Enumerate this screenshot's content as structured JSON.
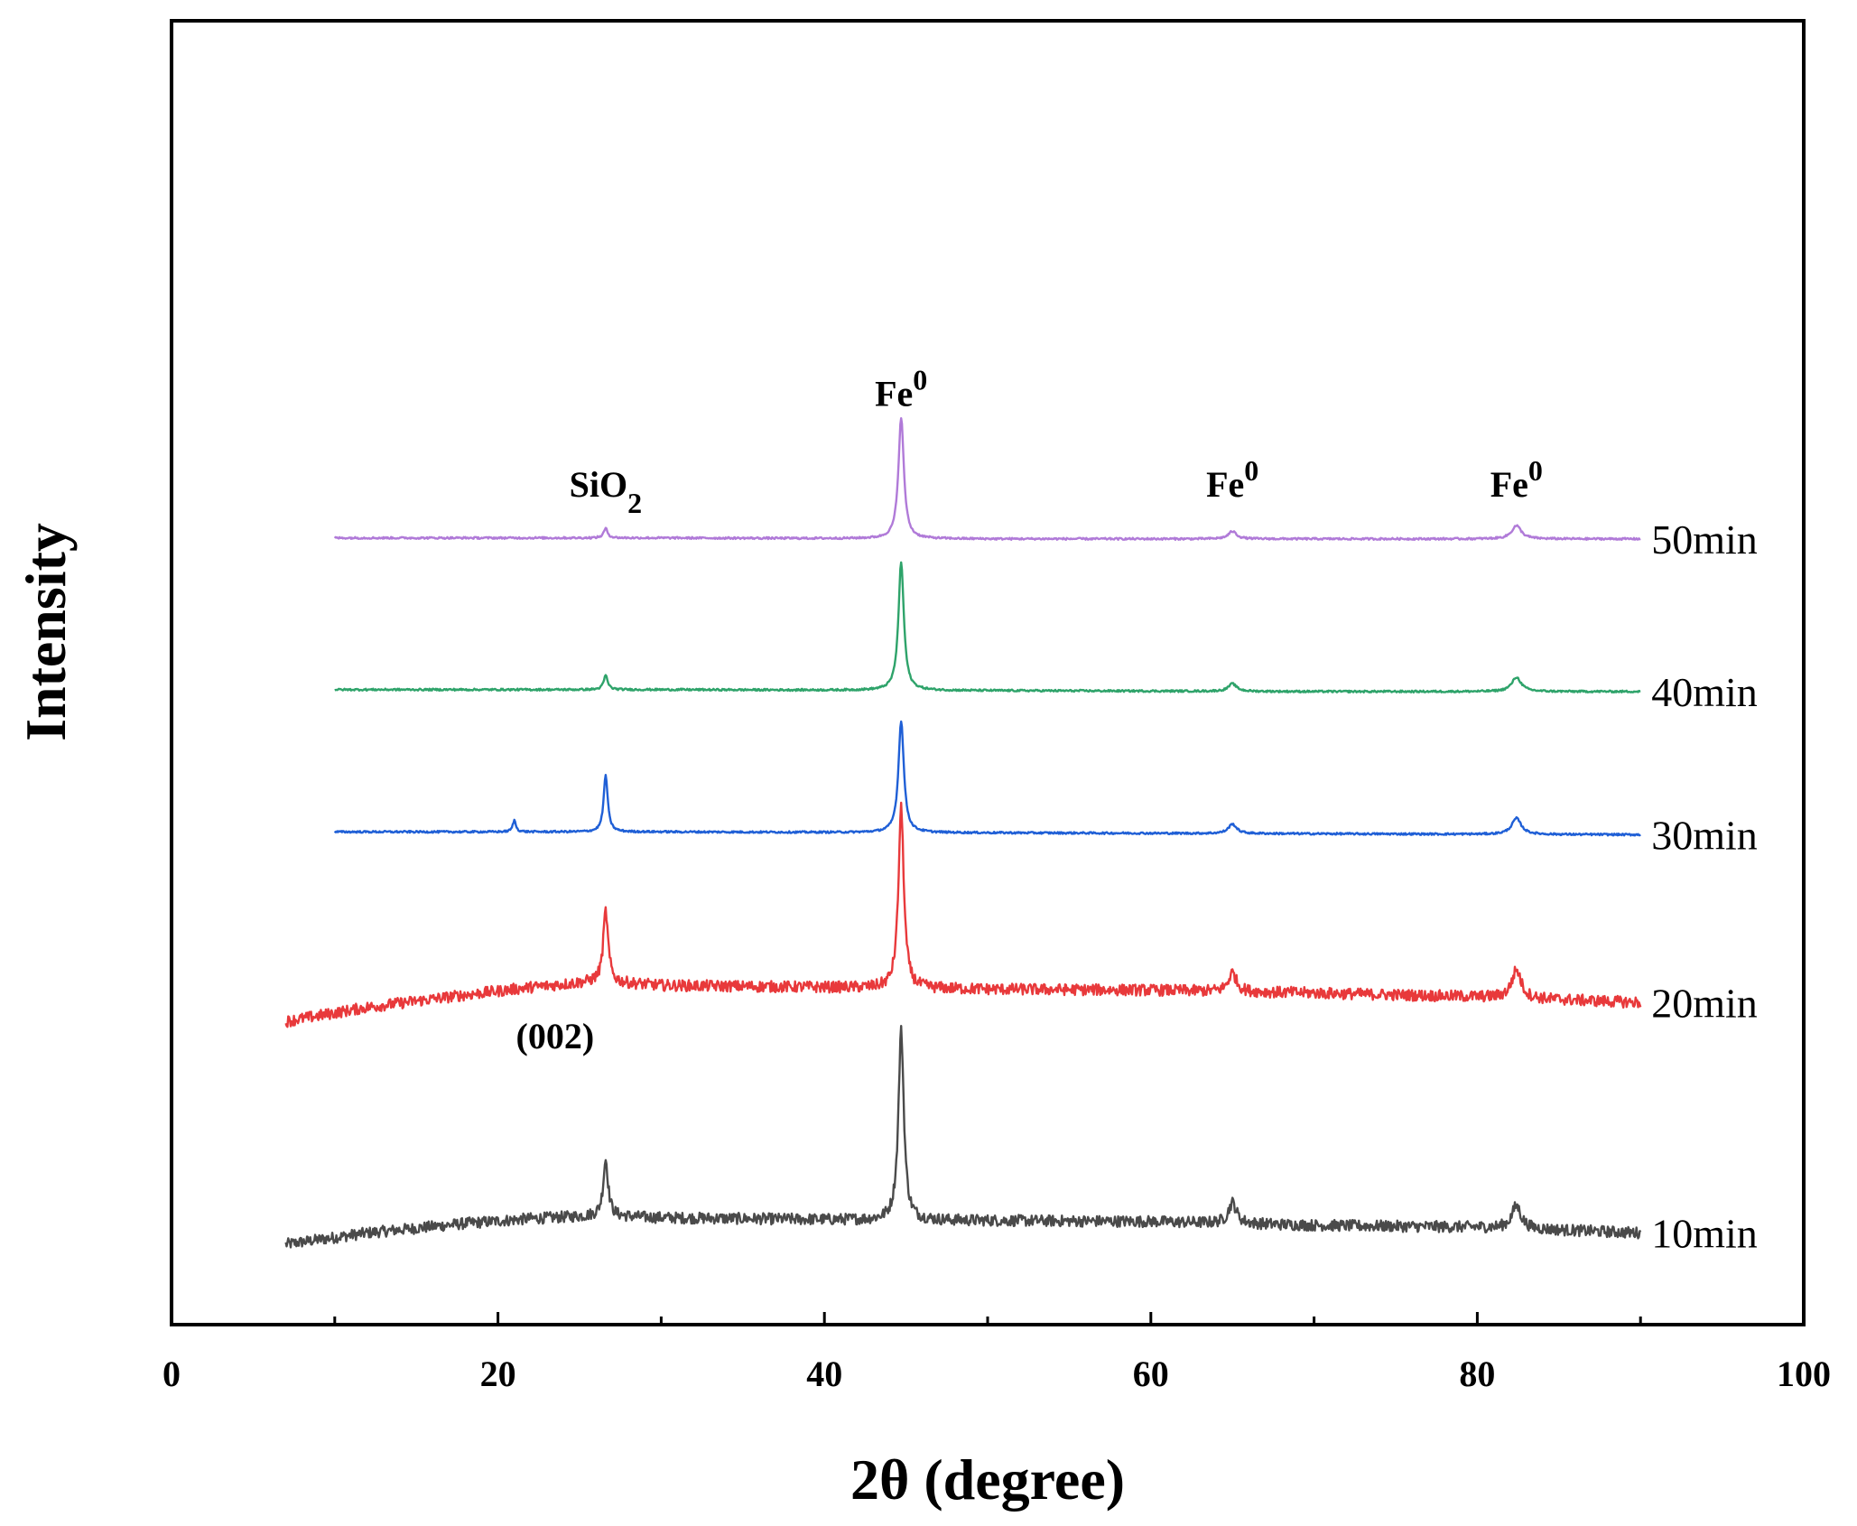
{
  "chart_data": {
    "type": "line",
    "title": "",
    "xlabel": "2θ (degree)",
    "ylabel": "Intensity",
    "xlim": [
      0,
      100
    ],
    "x_ticks": [
      0,
      20,
      40,
      60,
      80,
      100
    ],
    "x_tick_labels": [
      "0",
      "20",
      "40",
      "60",
      "80",
      "100"
    ],
    "y_ticks_shown": false,
    "grid": false,
    "legend": "inline labels at right end of each trace",
    "series": [
      {
        "name": "10min",
        "label": "10min",
        "color": "#4a4a4a",
        "x_range": [
          7,
          90
        ],
        "stacked_offset": 0,
        "noise": 0.06,
        "baseline_points": [
          [
            7,
            0.0
          ],
          [
            12,
            0.12
          ],
          [
            18,
            0.22
          ],
          [
            22,
            0.27
          ],
          [
            26,
            0.3
          ],
          [
            30,
            0.28
          ],
          [
            40,
            0.26
          ],
          [
            50,
            0.25
          ],
          [
            60,
            0.24
          ],
          [
            70,
            0.2
          ],
          [
            80,
            0.18
          ],
          [
            90,
            0.12
          ]
        ],
        "peaks": [
          {
            "x": 26.6,
            "height": 0.6,
            "width": 0.18,
            "label": ""
          },
          {
            "x": 44.7,
            "height": 2.0,
            "width": 0.2,
            "label": ""
          },
          {
            "x": 65.0,
            "height": 0.22,
            "width": 0.3,
            "label": ""
          },
          {
            "x": 82.4,
            "height": 0.24,
            "width": 0.35,
            "label": ""
          }
        ]
      },
      {
        "name": "20min",
        "label": "20min",
        "color": "#e8393b",
        "x_range": [
          7,
          90
        ],
        "stacked_offset": 2.35,
        "noise": 0.06,
        "baseline_points": [
          [
            7,
            0.0
          ],
          [
            12,
            0.15
          ],
          [
            18,
            0.28
          ],
          [
            22,
            0.36
          ],
          [
            26,
            0.42
          ],
          [
            30,
            0.38
          ],
          [
            40,
            0.36
          ],
          [
            50,
            0.34
          ],
          [
            60,
            0.33
          ],
          [
            70,
            0.3
          ],
          [
            80,
            0.26
          ],
          [
            90,
            0.2
          ]
        ],
        "peaks": [
          {
            "x": 26.6,
            "height": 0.75,
            "width": 0.18,
            "label": ""
          },
          {
            "x": 44.7,
            "height": 1.9,
            "width": 0.2,
            "label": ""
          },
          {
            "x": 65.0,
            "height": 0.2,
            "width": 0.3,
            "label": ""
          },
          {
            "x": 82.4,
            "height": 0.3,
            "width": 0.35,
            "label": ""
          }
        ]
      },
      {
        "name": "30min",
        "label": "30min",
        "color": "#1f5fd6",
        "x_range": [
          10,
          90
        ],
        "stacked_offset": 4.35,
        "noise": 0.01,
        "baseline_points": [
          [
            10,
            0.0
          ],
          [
            30,
            0.0
          ],
          [
            50,
            -0.01
          ],
          [
            70,
            -0.02
          ],
          [
            90,
            -0.03
          ]
        ],
        "peaks": [
          {
            "x": 21.0,
            "height": 0.12,
            "width": 0.12,
            "label": ""
          },
          {
            "x": 26.6,
            "height": 0.6,
            "width": 0.15,
            "label": ""
          },
          {
            "x": 44.7,
            "height": 1.18,
            "width": 0.2,
            "label": ""
          },
          {
            "x": 65.0,
            "height": 0.1,
            "width": 0.3,
            "label": ""
          },
          {
            "x": 82.4,
            "height": 0.17,
            "width": 0.35,
            "label": ""
          }
        ]
      },
      {
        "name": "40min",
        "label": "40min",
        "color": "#2ea36a",
        "x_range": [
          10,
          90
        ],
        "stacked_offset": 5.85,
        "noise": 0.01,
        "baseline_points": [
          [
            10,
            0.0
          ],
          [
            30,
            0.0
          ],
          [
            50,
            -0.01
          ],
          [
            70,
            -0.02
          ],
          [
            90,
            -0.02
          ]
        ],
        "peaks": [
          {
            "x": 26.6,
            "height": 0.15,
            "width": 0.15,
            "label": ""
          },
          {
            "x": 44.7,
            "height": 1.35,
            "width": 0.2,
            "label": ""
          },
          {
            "x": 65.0,
            "height": 0.08,
            "width": 0.3,
            "label": ""
          },
          {
            "x": 82.4,
            "height": 0.15,
            "width": 0.35,
            "label": ""
          }
        ]
      },
      {
        "name": "50min",
        "label": "50min",
        "color": "#b07ad8",
        "x_range": [
          10,
          90
        ],
        "stacked_offset": 7.45,
        "noise": 0.01,
        "baseline_points": [
          [
            10,
            0.0
          ],
          [
            30,
            0.0
          ],
          [
            50,
            -0.01
          ],
          [
            70,
            -0.01
          ],
          [
            90,
            -0.01
          ]
        ],
        "peaks": [
          {
            "x": 26.6,
            "height": 0.1,
            "width": 0.15,
            "label": ""
          },
          {
            "x": 44.7,
            "height": 1.28,
            "width": 0.2,
            "label": ""
          },
          {
            "x": 65.0,
            "height": 0.08,
            "width": 0.3,
            "label": ""
          },
          {
            "x": 82.4,
            "height": 0.14,
            "width": 0.35,
            "label": ""
          }
        ]
      }
    ],
    "annotations": [
      {
        "text": "SiO",
        "sub": "2",
        "x": 26.6,
        "anchor": "above-50min"
      },
      {
        "text": "Fe",
        "sup": "0",
        "x": 44.7,
        "anchor": "above-50min-peak"
      },
      {
        "text": "Fe",
        "sup": "0",
        "x": 65.0,
        "anchor": "above-50min"
      },
      {
        "text": "Fe",
        "sup": "0",
        "x": 82.4,
        "anchor": "above-50min"
      },
      {
        "text": "(002)",
        "x": 23.5,
        "anchor": "below-20min"
      }
    ]
  }
}
